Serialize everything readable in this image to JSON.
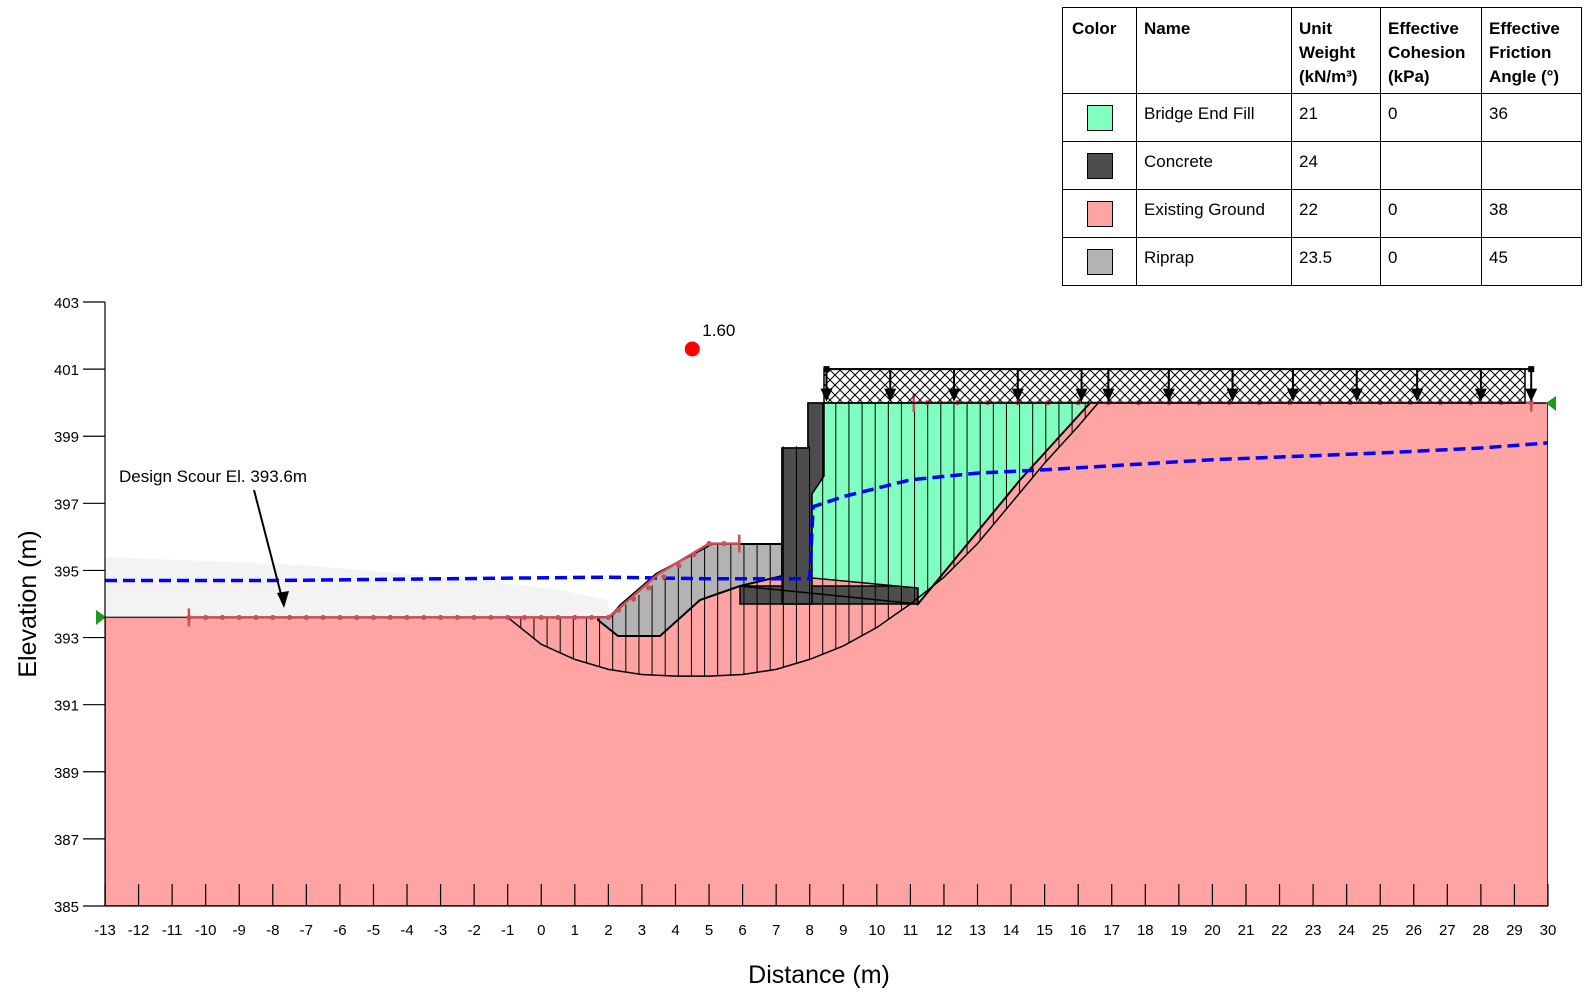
{
  "chart_data": {
    "type": "slope-stability-section",
    "xlabel": "Distance (m)",
    "ylabel": "Elevation (m)",
    "xlim": [
      -13,
      30
    ],
    "ylim": [
      385,
      403
    ],
    "x_ticks": [
      -13,
      -12,
      -11,
      -10,
      -9,
      -8,
      -7,
      -6,
      -5,
      -4,
      -3,
      -2,
      -1,
      0,
      1,
      2,
      3,
      4,
      5,
      6,
      7,
      8,
      9,
      10,
      11,
      12,
      13,
      14,
      15,
      16,
      17,
      18,
      19,
      20,
      21,
      22,
      23,
      24,
      25,
      26,
      27,
      28,
      29,
      30
    ],
    "y_ticks": [
      385,
      387,
      389,
      391,
      393,
      395,
      397,
      399,
      401,
      403
    ],
    "factor_of_safety": {
      "label": "1.60",
      "center": [
        4.5,
        401.6
      ]
    },
    "annotation": {
      "text": "Design Scour El. 393.6m",
      "arrow_to": [
        -8,
        393.6
      ]
    },
    "slip_surface": [
      [
        -1,
        393.6
      ],
      [
        0,
        392.8
      ],
      [
        1,
        392.35
      ],
      [
        2,
        392.05
      ],
      [
        3,
        391.9
      ],
      [
        4,
        391.85
      ],
      [
        5,
        391.85
      ],
      [
        6,
        391.9
      ],
      [
        7,
        392.05
      ],
      [
        8,
        392.35
      ],
      [
        9,
        392.75
      ],
      [
        10,
        393.3
      ],
      [
        11,
        394
      ],
      [
        12,
        394.8
      ],
      [
        13,
        395.8
      ],
      [
        14,
        397
      ],
      [
        15,
        398.2
      ],
      [
        16,
        399.3
      ],
      [
        16.6,
        400
      ]
    ],
    "water_table": [
      [
        -13,
        394.7
      ],
      [
        -8,
        394.7
      ],
      [
        -3,
        394.75
      ],
      [
        2,
        394.8
      ],
      [
        5,
        394.75
      ],
      [
        8,
        394.75
      ],
      [
        8.1,
        396.9
      ],
      [
        9,
        397.2
      ],
      [
        11,
        397.7
      ],
      [
        13,
        397.9
      ],
      [
        15,
        398
      ],
      [
        20,
        398.3
      ],
      [
        25,
        398.5
      ],
      [
        28,
        398.65
      ],
      [
        30,
        398.8
      ]
    ],
    "ground_surface": [
      [
        -13,
        393.6
      ],
      [
        2,
        393.6
      ],
      [
        3.5,
        394.9
      ],
      [
        5,
        395.8
      ],
      [
        7,
        395.8
      ],
      [
        7,
        398.7
      ],
      [
        8,
        398.7
      ],
      [
        8,
        400
      ],
      [
        30,
        400
      ]
    ],
    "surcharge": {
      "x_range": [
        8.5,
        29.5
      ],
      "elevation": 400,
      "top": 401
    },
    "materials": [
      {
        "color": "#80ffc0",
        "name": "Bridge End Fill",
        "unit_weight": "21",
        "cohesion": "0",
        "friction": "36"
      },
      {
        "color": "#4d4d4d",
        "name": "Concrete",
        "unit_weight": "24",
        "cohesion": "",
        "friction": ""
      },
      {
        "color": "#ffa3a3",
        "name": "Existing Ground",
        "unit_weight": "22",
        "cohesion": "0",
        "friction": "38"
      },
      {
        "color": "#b3b3b3",
        "name": "Riprap",
        "unit_weight": "23.5",
        "cohesion": "0",
        "friction": "45"
      }
    ]
  },
  "legend": {
    "headers": [
      "Color",
      "Name",
      "Unit\nWeight\n(kN/m³)",
      "Effective\nCohesion\n(kPa)",
      "Effective\nFriction\nAngle (°)"
    ]
  }
}
